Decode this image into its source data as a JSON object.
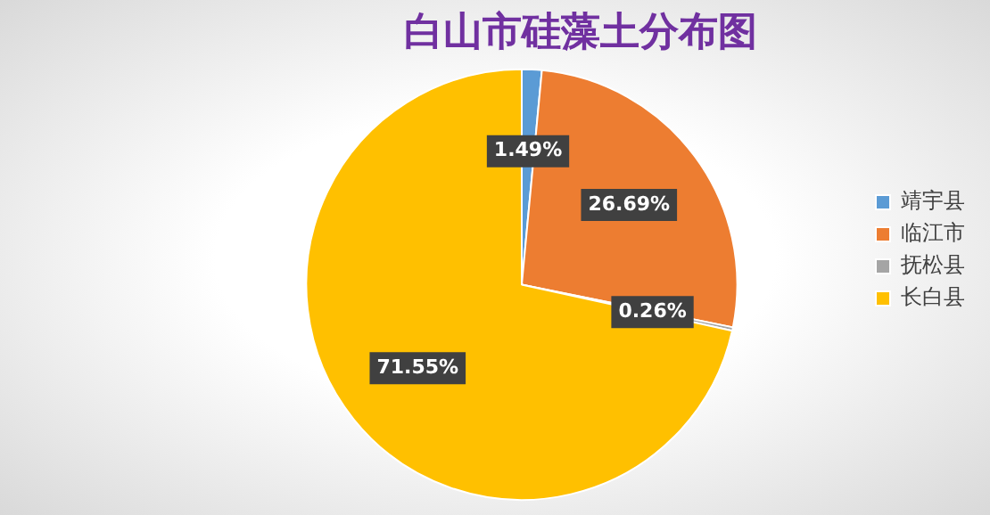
{
  "chart_data": {
    "type": "pie",
    "title": "白山市硅藻土分布图",
    "categories": [
      "靖宇县",
      "临江市",
      "抚松县",
      "长白县"
    ],
    "values": [
      1.49,
      26.69,
      0.26,
      71.55
    ],
    "value_labels": [
      "1.49%",
      "26.69%",
      "0.26%",
      "71.55%"
    ],
    "colors": [
      "#5b9bd5",
      "#ed7d31",
      "#a5a5a5",
      "#ffc000"
    ],
    "legend": "right"
  }
}
